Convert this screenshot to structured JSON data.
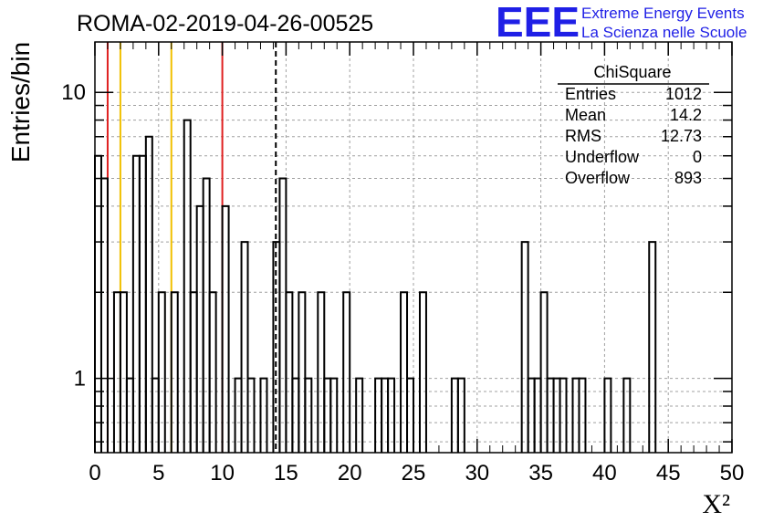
{
  "chart_data": {
    "type": "bar",
    "title": "ROMA-02-2019-04-26-00525",
    "xlabel": "X²",
    "ylabel": "Entries/bin",
    "xlim": [
      0,
      50
    ],
    "ylim": [
      0.55,
      15
    ],
    "y_scale": "log",
    "grid": true,
    "bin_width": 0.5,
    "x_ticks": [
      "0",
      "5",
      "10",
      "15",
      "20",
      "25",
      "30",
      "35",
      "40",
      "45",
      "50"
    ],
    "y_ticks": [
      "1",
      "10"
    ],
    "x": [
      0.25,
      0.75,
      1.25,
      1.75,
      2.25,
      2.75,
      3.25,
      3.75,
      4.25,
      4.75,
      5.25,
      5.75,
      6.25,
      6.75,
      7.25,
      7.75,
      8.25,
      8.75,
      9.25,
      9.75,
      10.25,
      10.75,
      11.25,
      11.75,
      12.25,
      12.75,
      13.25,
      13.75,
      14.25,
      14.75,
      15.25,
      15.75,
      16.25,
      16.75,
      17.25,
      17.75,
      18.25,
      18.75,
      19.25,
      19.75,
      20.25,
      20.75,
      21.25,
      21.75,
      22.25,
      22.75,
      23.25,
      23.75,
      24.25,
      24.75,
      25.25,
      25.75,
      26.25,
      26.75,
      27.25,
      27.75,
      28.25,
      28.75,
      29.25,
      29.75,
      30.25,
      30.75,
      31.25,
      31.75,
      32.25,
      32.75,
      33.25,
      33.75,
      34.25,
      34.75,
      35.25,
      35.75,
      36.25,
      36.75,
      37.25,
      37.75,
      38.25,
      38.75,
      39.25,
      39.75,
      40.25,
      40.75,
      41.25,
      41.75,
      42.25,
      42.75,
      43.25,
      43.75,
      44.25,
      44.75,
      45.25,
      45.75,
      46.25,
      46.75,
      47.25,
      47.75,
      48.25,
      48.75,
      49.25,
      49.75
    ],
    "values": [
      6,
      5,
      0,
      2,
      2,
      1,
      6,
      6,
      7,
      1,
      2,
      0,
      2,
      0,
      8,
      2,
      4,
      5,
      2,
      0,
      4,
      0,
      1,
      3,
      1,
      0,
      1,
      0,
      3,
      5,
      2,
      1,
      2,
      1,
      0,
      2,
      1,
      1,
      0,
      2,
      0,
      1,
      0,
      0,
      1,
      1,
      1,
      0,
      2,
      1,
      0,
      2,
      0,
      0,
      0,
      0,
      1,
      1,
      0,
      0,
      0,
      0,
      0,
      0,
      0,
      0,
      0,
      3,
      1,
      1,
      2,
      1,
      1,
      1,
      0,
      1,
      1,
      0,
      0,
      0,
      1,
      0,
      0,
      1,
      0,
      0,
      0,
      3,
      0,
      0,
      0,
      0,
      0,
      0,
      0,
      0,
      0,
      0,
      0,
      0
    ],
    "vertical_lines": [
      {
        "x": 1.0,
        "color": "#e02020",
        "style": "solid"
      },
      {
        "x": 2.0,
        "color": "#f0c000",
        "style": "solid"
      },
      {
        "x": 6.0,
        "color": "#f0c000",
        "style": "solid"
      },
      {
        "x": 10.0,
        "color": "#e02020",
        "style": "solid"
      },
      {
        "x": 14.2,
        "color": "#000000",
        "style": "dashed"
      }
    ],
    "stats_box": {
      "title": "ChiSquare",
      "rows": [
        {
          "label": "Entries",
          "value": "1012"
        },
        {
          "label": "Mean",
          "value": "14.2"
        },
        {
          "label": "RMS",
          "value": "12.73"
        },
        {
          "label": "Underflow",
          "value": "0"
        },
        {
          "label": "Overflow",
          "value": "893"
        }
      ]
    },
    "logo": {
      "mark": "EEE",
      "line1": "Extreme Energy Events",
      "line2": "La Scienza nelle Scuole",
      "color": "#1f1fe6"
    }
  }
}
